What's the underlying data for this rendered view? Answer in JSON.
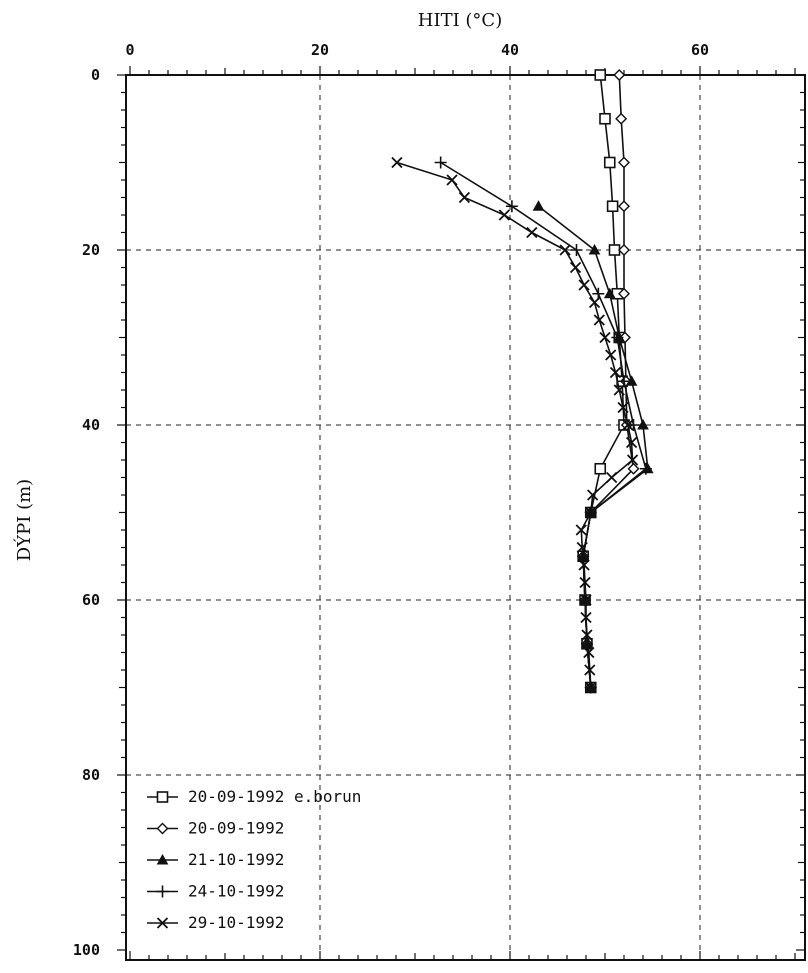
{
  "chart_data": {
    "type": "line",
    "xlabel": "HITI (°C)",
    "ylabel": "DÝPI (m)",
    "xlim": [
      0,
      70
    ],
    "ylim": [
      0,
      100
    ],
    "y_inverted": true,
    "x_axis_position": "top",
    "x_ticks": [
      "0",
      "20",
      "40",
      "60"
    ],
    "y_ticks": [
      "0",
      "20",
      "40",
      "60",
      "80",
      "100"
    ],
    "grid": true,
    "legend_position": "bottom-left",
    "series": [
      {
        "name": "20-09-1992 e.borun",
        "marker": "square",
        "points": [
          {
            "x": 49.5,
            "y": 0
          },
          {
            "x": 50.0,
            "y": 5
          },
          {
            "x": 50.5,
            "y": 10
          },
          {
            "x": 50.8,
            "y": 15
          },
          {
            "x": 51.0,
            "y": 20
          },
          {
            "x": 51.3,
            "y": 25
          },
          {
            "x": 51.5,
            "y": 30
          },
          {
            "x": 51.8,
            "y": 35
          },
          {
            "x": 52.0,
            "y": 40
          },
          {
            "x": 49.5,
            "y": 45
          },
          {
            "x": 48.5,
            "y": 50
          },
          {
            "x": 47.7,
            "y": 55
          },
          {
            "x": 47.9,
            "y": 60
          },
          {
            "x": 48.1,
            "y": 65
          },
          {
            "x": 48.5,
            "y": 70
          }
        ]
      },
      {
        "name": "20-09-1992",
        "marker": "diamond",
        "points": [
          {
            "x": 51.5,
            "y": 0
          },
          {
            "x": 51.7,
            "y": 5
          },
          {
            "x": 52.0,
            "y": 10
          },
          {
            "x": 52.0,
            "y": 15
          },
          {
            "x": 52.0,
            "y": 20
          },
          {
            "x": 52.0,
            "y": 25
          },
          {
            "x": 52.1,
            "y": 30
          },
          {
            "x": 52.2,
            "y": 35
          },
          {
            "x": 52.3,
            "y": 40
          },
          {
            "x": 53.0,
            "y": 45
          },
          {
            "x": 48.5,
            "y": 50
          },
          {
            "x": 47.7,
            "y": 55
          },
          {
            "x": 47.9,
            "y": 60
          },
          {
            "x": 48.1,
            "y": 65
          },
          {
            "x": 48.5,
            "y": 70
          }
        ]
      },
      {
        "name": "21-10-1992",
        "marker": "triangle",
        "points": [
          {
            "x": 43.0,
            "y": 15
          },
          {
            "x": 48.9,
            "y": 20
          },
          {
            "x": 50.5,
            "y": 25
          },
          {
            "x": 51.5,
            "y": 30
          },
          {
            "x": 52.8,
            "y": 35
          },
          {
            "x": 54.0,
            "y": 40
          },
          {
            "x": 54.5,
            "y": 45
          },
          {
            "x": 48.5,
            "y": 50
          },
          {
            "x": 47.7,
            "y": 55
          },
          {
            "x": 47.9,
            "y": 60
          },
          {
            "x": 48.1,
            "y": 65
          },
          {
            "x": 48.5,
            "y": 70
          }
        ]
      },
      {
        "name": "24-10-1992",
        "marker": "plus",
        "points": [
          {
            "x": 32.7,
            "y": 10
          },
          {
            "x": 40.2,
            "y": 15
          },
          {
            "x": 47.0,
            "y": 20
          },
          {
            "x": 49.3,
            "y": 25
          },
          {
            "x": 51.3,
            "y": 30
          },
          {
            "x": 52.0,
            "y": 35
          },
          {
            "x": 53.0,
            "y": 40
          },
          {
            "x": 54.3,
            "y": 45
          },
          {
            "x": 48.5,
            "y": 50
          },
          {
            "x": 47.7,
            "y": 55
          },
          {
            "x": 47.9,
            "y": 60
          },
          {
            "x": 48.1,
            "y": 65
          },
          {
            "x": 48.5,
            "y": 70
          }
        ]
      },
      {
        "name": "29-10-1992",
        "marker": "x",
        "points": [
          {
            "x": 28.1,
            "y": 10
          },
          {
            "x": 33.9,
            "y": 12
          },
          {
            "x": 35.2,
            "y": 14
          },
          {
            "x": 39.4,
            "y": 16
          },
          {
            "x": 42.3,
            "y": 18
          },
          {
            "x": 45.8,
            "y": 20
          },
          {
            "x": 46.9,
            "y": 22
          },
          {
            "x": 47.8,
            "y": 24
          },
          {
            "x": 48.9,
            "y": 26
          },
          {
            "x": 49.4,
            "y": 28
          },
          {
            "x": 50.0,
            "y": 30
          },
          {
            "x": 50.6,
            "y": 32
          },
          {
            "x": 51.1,
            "y": 34
          },
          {
            "x": 51.5,
            "y": 36
          },
          {
            "x": 51.9,
            "y": 38
          },
          {
            "x": 52.4,
            "y": 40
          },
          {
            "x": 52.8,
            "y": 42
          },
          {
            "x": 52.9,
            "y": 44
          },
          {
            "x": 50.7,
            "y": 46
          },
          {
            "x": 48.7,
            "y": 48
          },
          {
            "x": 48.5,
            "y": 50
          },
          {
            "x": 47.5,
            "y": 52
          },
          {
            "x": 47.6,
            "y": 54
          },
          {
            "x": 47.8,
            "y": 56
          },
          {
            "x": 47.9,
            "y": 58
          },
          {
            "x": 48.0,
            "y": 60
          },
          {
            "x": 48.0,
            "y": 62
          },
          {
            "x": 48.1,
            "y": 64
          },
          {
            "x": 48.3,
            "y": 66
          },
          {
            "x": 48.4,
            "y": 68
          },
          {
            "x": 48.5,
            "y": 70
          }
        ]
      }
    ]
  }
}
